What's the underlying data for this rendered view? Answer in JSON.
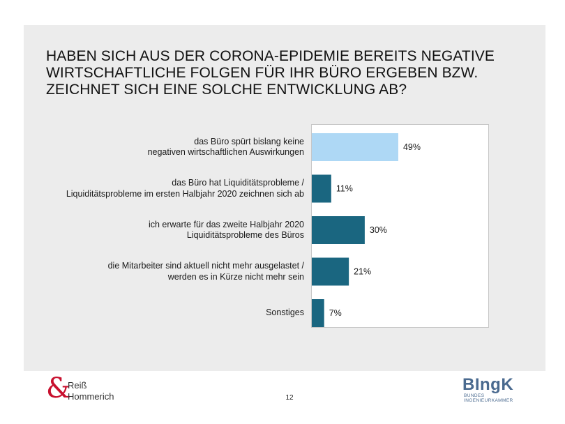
{
  "title_lines": [
    "HABEN SICH AUS DER CORONA-EPIDEMIE BEREITS NEGATIVE",
    "WIRTSCHAFTLICHE FOLGEN FÜR IHR BÜRO ERGEBEN BZW.",
    "ZEICHNET SICH EINE SOLCHE ENTWICKLUNG AB?"
  ],
  "chart_data": {
    "type": "bar",
    "orientation": "horizontal",
    "title": "HABEN SICH AUS DER CORONA-EPIDEMIE BEREITS NEGATIVE WIRTSCHAFTLICHE FOLGEN FÜR IHR BÜRO ERGEBEN BZW. ZEICHNET SICH EINE SOLCHE ENTWICKLUNG AB?",
    "categories": [
      [
        "das Büro spürt bislang keine",
        "negativen wirtschaftlichen Auswirkungen"
      ],
      [
        "das Büro hat Liquiditätsprobleme /",
        "Liquiditätsprobleme im ersten Halbjahr 2020 zeichnen sich ab"
      ],
      [
        "ich erwarte für das zweite Halbjahr 2020",
        "Liquiditätsprobleme des Büros"
      ],
      [
        "die Mitarbeiter sind aktuell nicht mehr ausgelastet /",
        "werden es in Kürze nicht mehr sein"
      ],
      [
        "Sonstiges"
      ]
    ],
    "values": [
      49,
      11,
      30,
      21,
      7
    ],
    "value_labels": [
      "49%",
      "11%",
      "30%",
      "21%",
      "7%"
    ],
    "colors": [
      "#aed8f5",
      "#1a6680",
      "#1a6680",
      "#1a6680",
      "#1a6680"
    ],
    "xlim": [
      0,
      100
    ],
    "xlabel": "",
    "ylabel": "",
    "legend": "none",
    "grid": false
  },
  "footer": {
    "logo_left_symbol": "&",
    "logo_left_line1": "Reiß",
    "logo_left_line2": "Hommerich",
    "page_number": "12",
    "logo_right_main": "BIngK",
    "logo_right_sub1": "BUNDES",
    "logo_right_sub2": "INGENIEURKAMMER"
  },
  "colors": {
    "slide_background": "#ececec",
    "accent_bar": "#1a6680",
    "highlight_bar": "#aed8f5",
    "logo_red": "#c8102e",
    "logo_blue": "#4a6a8f"
  }
}
